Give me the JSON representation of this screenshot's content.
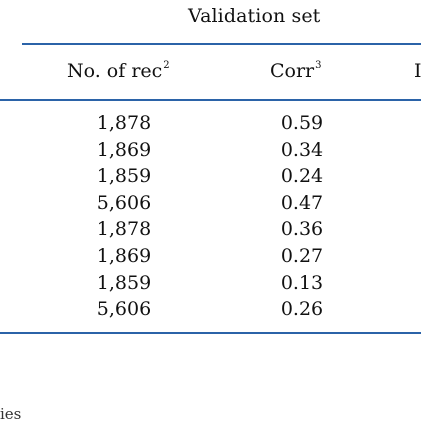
{
  "table": {
    "group_title": "Validation set",
    "columns": [
      {
        "label": "No. of rec",
        "footnote": "2"
      },
      {
        "label": "Corr",
        "footnote": "3"
      },
      {
        "label": "I",
        "footnote": ""
      }
    ],
    "rows": [
      {
        "rec": "1,878",
        "corr": "0.59"
      },
      {
        "rec": "1,869",
        "corr": "0.34"
      },
      {
        "rec": "1,859",
        "corr": "0.24"
      },
      {
        "rec": "5,606",
        "corr": "0.47"
      },
      {
        "rec": "1,878",
        "corr": "0.36"
      },
      {
        "rec": "1,869",
        "corr": "0.27"
      },
      {
        "rec": "1,859",
        "corr": "0.13"
      },
      {
        "rec": "5,606",
        "corr": "0.26"
      }
    ]
  },
  "footer_fragment": "ies"
}
